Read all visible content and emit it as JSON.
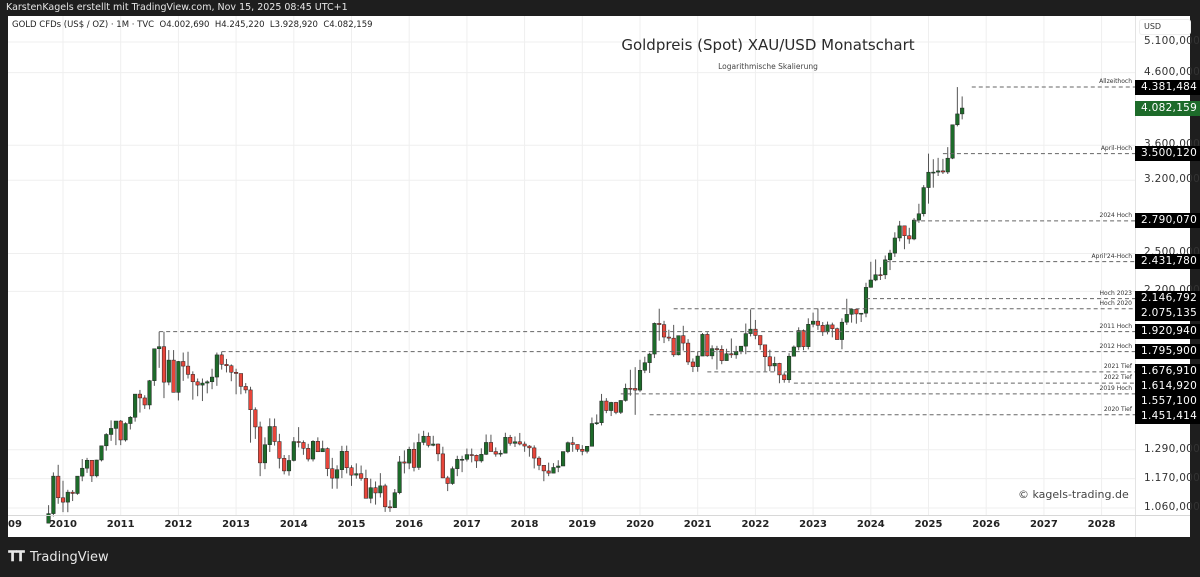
{
  "header": {
    "attribution": "KarstenKagels erstellt mit TradingView.com, Nov 15, 2025 08:45 UTC+1"
  },
  "legend": {
    "symbol": "GOLD CFDs (US$ / OZ) · 1M · TVC",
    "open": "O4.002,690",
    "high": "H4.245,220",
    "low": "L3.928,920",
    "close": "C4.082,159"
  },
  "chart_title": "Goldpreis (Spot) XAU/USD Monatschart",
  "chart_subtitle": "Logarithmische Skalierung",
  "watermark": "© kagels-trading.de",
  "footer": {
    "brand": "TradingView",
    "logo_icon": "tradingview-logo-icon"
  },
  "colors": {
    "up": "#1d6b2a",
    "down": "#e8463b",
    "wick": "#555555",
    "grid": "#efefef",
    "level_bg": "#000000",
    "current_bg": "#1d6b2a"
  },
  "chart_data": {
    "type": "candlestick",
    "title": "Goldpreis (Spot) XAU/USD Monatschart",
    "subtitle": "Logarithmische Skalierung",
    "xlabel": "",
    "ylabel": "USD",
    "y_scale": "log",
    "ylim": [
      1030,
      5400
    ],
    "grid": true,
    "currency_label": "USD",
    "x_ticks": [
      "09",
      "2010",
      "2011",
      "2012",
      "2013",
      "2014",
      "2015",
      "2016",
      "2017",
      "2018",
      "2019",
      "2020",
      "2021",
      "2022",
      "2023",
      "2024",
      "2025",
      "2026",
      "2027",
      "2028"
    ],
    "y_ticks": [
      "5.100,000",
      "4.600,000",
      "3.600,000",
      "3.200,000",
      "2.500,000",
      "2.200,000",
      "1.290,000",
      "1.170,000",
      "1.060,000"
    ],
    "y_tick_values": [
      5100,
      4600,
      3600,
      3200,
      2500,
      2200,
      1290,
      1170,
      1060
    ],
    "current_price": {
      "label": "4.082,159",
      "value": 4082.159
    },
    "horizontal_levels": [
      {
        "name": "Allzeithoch",
        "label": "4.381,484",
        "value": 4381.484,
        "start": "2025-10"
      },
      {
        "name": "April-Hoch",
        "label": "3.500,120",
        "value": 3500.12,
        "start": "2025-04"
      },
      {
        "name": "2024 Hoch",
        "label": "2.790,070",
        "value": 2790.07,
        "start": "2024-10"
      },
      {
        "name": "April'24-Hoch",
        "label": "2.431,780",
        "value": 2431.78,
        "start": "2024-04"
      },
      {
        "name": "Hoch 2023",
        "label": "2.146,792",
        "value": 2146.792,
        "start": "2023-12"
      },
      {
        "name": "Hoch 2020",
        "label": "2.075,135",
        "value": 2075.135,
        "start": "2020-08"
      },
      {
        "name": "2011 Hoch",
        "label": "1.920,940",
        "value": 1920.94,
        "start": "2011-09"
      },
      {
        "name": "2012 Hoch",
        "label": "1.795,900",
        "value": 1795.9,
        "start": "2012-10"
      },
      {
        "name": "2021 Tief",
        "label": "1.676,910",
        "value": 1676.91,
        "start": "2021-03"
      },
      {
        "name": "2022 Tief",
        "label": "1.614,920",
        "value": 1614.92,
        "start": "2022-09"
      },
      {
        "name": "2019 Hoch",
        "label": "1.557,100",
        "value": 1557.1,
        "start": "2019-09"
      },
      {
        "name": "2020 Tief",
        "label": "1.451,414",
        "value": 1451.414,
        "start": "2020-03"
      }
    ],
    "last_candle": {
      "date": "2025-11",
      "open": 4002.69,
      "high": 4245.22,
      "low": 3928.92,
      "close": 4082.159
    },
    "start": "2009-10",
    "ohlc_monthly": [
      [
        1007,
        1070,
        1025,
        1040
      ],
      [
        1040,
        1195,
        1030,
        1180
      ],
      [
        1180,
        1226,
        1075,
        1097
      ],
      [
        1097,
        1162,
        1045,
        1081
      ],
      [
        1081,
        1127,
        1045,
        1118
      ],
      [
        1118,
        1126,
        1085,
        1113
      ],
      [
        1113,
        1167,
        1108,
        1180
      ],
      [
        1180,
        1250,
        1160,
        1212
      ],
      [
        1212,
        1255,
        1193,
        1245
      ],
      [
        1245,
        1215,
        1157,
        1181
      ],
      [
        1181,
        1247,
        1175,
        1246
      ],
      [
        1246,
        1300,
        1240,
        1307
      ],
      [
        1307,
        1364,
        1286,
        1358
      ],
      [
        1358,
        1424,
        1329,
        1386
      ],
      [
        1386,
        1404,
        1310,
        1421
      ],
      [
        1421,
        1426,
        1310,
        1333
      ],
      [
        1333,
        1415,
        1326,
        1409
      ],
      [
        1409,
        1445,
        1381,
        1439
      ],
      [
        1439,
        1555,
        1418,
        1556
      ],
      [
        1556,
        1578,
        1462,
        1536
      ],
      [
        1536,
        1550,
        1480,
        1500
      ],
      [
        1500,
        1632,
        1478,
        1628
      ],
      [
        1628,
        1814,
        1600,
        1813
      ],
      [
        1813,
        1920,
        1700,
        1826
      ],
      [
        1826,
        1920,
        1535,
        1620
      ],
      [
        1620,
        1805,
        1603,
        1745
      ],
      [
        1745,
        1805,
        1670,
        1565
      ],
      [
        1565,
        1740,
        1523,
        1737
      ],
      [
        1737,
        1790,
        1627,
        1710
      ],
      [
        1710,
        1795,
        1640,
        1663
      ],
      [
        1663,
        1680,
        1527,
        1622
      ],
      [
        1622,
        1640,
        1545,
        1604
      ],
      [
        1604,
        1640,
        1520,
        1615
      ],
      [
        1615,
        1630,
        1560,
        1622
      ],
      [
        1622,
        1695,
        1582,
        1648
      ],
      [
        1648,
        1790,
        1600,
        1776
      ],
      [
        1776,
        1795,
        1690,
        1720
      ],
      [
        1720,
        1752,
        1674,
        1712
      ],
      [
        1712,
        1720,
        1625,
        1675
      ],
      [
        1675,
        1695,
        1555,
        1668
      ],
      [
        1668,
        1620,
        1555,
        1597
      ],
      [
        1597,
        1615,
        1560,
        1578
      ],
      [
        1578,
        1595,
        1321,
        1476
      ],
      [
        1476,
        1488,
        1338,
        1393
      ],
      [
        1393,
        1418,
        1180,
        1234
      ],
      [
        1234,
        1345,
        1208,
        1312
      ],
      [
        1312,
        1434,
        1280,
        1395
      ],
      [
        1395,
        1433,
        1308,
        1326
      ],
      [
        1326,
        1361,
        1211,
        1253
      ],
      [
        1253,
        1267,
        1187,
        1201
      ],
      [
        1201,
        1267,
        1182,
        1244
      ],
      [
        1244,
        1346,
        1240,
        1326
      ],
      [
        1326,
        1392,
        1300,
        1322
      ],
      [
        1322,
        1331,
        1268,
        1296
      ],
      [
        1296,
        1316,
        1240,
        1250
      ],
      [
        1250,
        1332,
        1240,
        1327
      ],
      [
        1327,
        1345,
        1280,
        1281
      ],
      [
        1281,
        1330,
        1290,
        1295
      ],
      [
        1295,
        1300,
        1180,
        1210
      ],
      [
        1210,
        1255,
        1131,
        1172
      ],
      [
        1172,
        1224,
        1131,
        1206
      ],
      [
        1206,
        1307,
        1172,
        1283
      ],
      [
        1283,
        1308,
        1191,
        1214
      ],
      [
        1214,
        1224,
        1142,
        1184
      ],
      [
        1184,
        1232,
        1170,
        1190
      ],
      [
        1190,
        1223,
        1162,
        1171
      ],
      [
        1171,
        1206,
        1130,
        1095
      ],
      [
        1095,
        1170,
        1077,
        1135
      ],
      [
        1135,
        1159,
        1072,
        1115
      ],
      [
        1115,
        1192,
        1098,
        1142
      ],
      [
        1142,
        1150,
        1046,
        1064
      ],
      [
        1064,
        1088,
        1046,
        1061
      ],
      [
        1061,
        1130,
        1062,
        1116
      ],
      [
        1116,
        1263,
        1110,
        1238
      ],
      [
        1238,
        1287,
        1191,
        1233
      ],
      [
        1233,
        1303,
        1208,
        1292
      ],
      [
        1292,
        1322,
        1199,
        1215
      ],
      [
        1215,
        1362,
        1205,
        1322
      ],
      [
        1322,
        1375,
        1310,
        1350
      ],
      [
        1350,
        1367,
        1300,
        1309
      ],
      [
        1309,
        1352,
        1305,
        1315
      ],
      [
        1315,
        1317,
        1241,
        1272
      ],
      [
        1272,
        1303,
        1172,
        1173
      ],
      [
        1173,
        1181,
        1122,
        1151
      ],
      [
        1151,
        1219,
        1146,
        1210
      ],
      [
        1210,
        1264,
        1180,
        1249
      ],
      [
        1249,
        1264,
        1196,
        1249
      ],
      [
        1249,
        1295,
        1240,
        1269
      ],
      [
        1269,
        1295,
        1236,
        1266
      ],
      [
        1266,
        1269,
        1213,
        1242
      ],
      [
        1242,
        1296,
        1235,
        1270
      ],
      [
        1270,
        1358,
        1267,
        1322
      ],
      [
        1322,
        1357,
        1310,
        1282
      ],
      [
        1282,
        1300,
        1260,
        1271
      ],
      [
        1271,
        1288,
        1260,
        1275
      ],
      [
        1275,
        1366,
        1300,
        1345
      ],
      [
        1345,
        1356,
        1308,
        1318
      ],
      [
        1318,
        1349,
        1302,
        1325
      ],
      [
        1325,
        1365,
        1309,
        1315
      ],
      [
        1315,
        1326,
        1281,
        1306
      ],
      [
        1306,
        1310,
        1260,
        1298
      ],
      [
        1298,
        1309,
        1211,
        1254
      ],
      [
        1254,
        1262,
        1204,
        1224
      ],
      [
        1224,
        1214,
        1160,
        1201
      ],
      [
        1201,
        1235,
        1180,
        1192
      ],
      [
        1192,
        1233,
        1196,
        1215
      ],
      [
        1215,
        1245,
        1196,
        1221
      ],
      [
        1221,
        1282,
        1221,
        1282
      ],
      [
        1282,
        1326,
        1275,
        1321
      ],
      [
        1321,
        1347,
        1281,
        1313
      ],
      [
        1313,
        1310,
        1281,
        1292
      ],
      [
        1292,
        1310,
        1266,
        1283
      ],
      [
        1283,
        1305,
        1274,
        1305
      ],
      [
        1305,
        1438,
        1318,
        1409
      ],
      [
        1409,
        1453,
        1402,
        1413
      ],
      [
        1413,
        1557,
        1400,
        1520
      ],
      [
        1520,
        1535,
        1459,
        1472
      ],
      [
        1472,
        1516,
        1445,
        1513
      ],
      [
        1513,
        1516,
        1454,
        1463
      ],
      [
        1463,
        1524,
        1455,
        1523
      ],
      [
        1523,
        1612,
        1517,
        1587
      ],
      [
        1587,
        1689,
        1548,
        1586
      ],
      [
        1586,
        1704,
        1451,
        1577
      ],
      [
        1577,
        1747,
        1568,
        1686
      ],
      [
        1686,
        1765,
        1670,
        1730
      ],
      [
        1730,
        1789,
        1671,
        1781
      ],
      [
        1781,
        1981,
        1757,
        1975
      ],
      [
        1975,
        2075,
        1863,
        1967
      ],
      [
        1967,
        1992,
        1848,
        1886
      ],
      [
        1886,
        1933,
        1860,
        1879
      ],
      [
        1879,
        1965,
        1764,
        1776
      ],
      [
        1776,
        1875,
        1773,
        1895
      ],
      [
        1895,
        1959,
        1802,
        1848
      ],
      [
        1848,
        1873,
        1717,
        1734
      ],
      [
        1734,
        1755,
        1676,
        1707
      ],
      [
        1707,
        1797,
        1678,
        1769
      ],
      [
        1769,
        1912,
        1770,
        1903
      ],
      [
        1903,
        1916,
        1765,
        1770
      ],
      [
        1770,
        1834,
        1750,
        1814
      ],
      [
        1814,
        1831,
        1690,
        1810
      ],
      [
        1810,
        1834,
        1721,
        1742
      ],
      [
        1742,
        1813,
        1745,
        1783
      ],
      [
        1783,
        1877,
        1758,
        1776
      ],
      [
        1776,
        1831,
        1753,
        1797
      ],
      [
        1797,
        1829,
        1780,
        1829
      ],
      [
        1829,
        1974,
        1780,
        1908
      ],
      [
        1908,
        2070,
        1890,
        1937
      ],
      [
        1937,
        1998,
        1872,
        1896
      ],
      [
        1896,
        1879,
        1807,
        1837
      ],
      [
        1837,
        1814,
        1680,
        1765
      ],
      [
        1765,
        1807,
        1681,
        1711
      ],
      [
        1711,
        1765,
        1680,
        1726
      ],
      [
        1726,
        1729,
        1614,
        1660
      ],
      [
        1660,
        1673,
        1617,
        1633
      ],
      [
        1633,
        1786,
        1616,
        1768
      ],
      [
        1768,
        1833,
        1768,
        1824
      ],
      [
        1824,
        1949,
        1804,
        1928
      ],
      [
        1928,
        1935,
        1804,
        1826
      ],
      [
        1826,
        2009,
        1809,
        1969
      ],
      [
        1969,
        2048,
        1949,
        1990
      ],
      [
        1990,
        2077,
        1932,
        1962
      ],
      [
        1962,
        1984,
        1893,
        1919
      ],
      [
        1919,
        1987,
        1903,
        1965
      ],
      [
        1965,
        1980,
        1884,
        1940
      ],
      [
        1940,
        1947,
        1871,
        1870
      ],
      [
        1870,
        2009,
        1810,
        1983
      ],
      [
        1983,
        2146,
        1965,
        2036
      ],
      [
        2036,
        2078,
        1980,
        2071
      ],
      [
        2071,
        2065,
        1973,
        2039
      ],
      [
        2039,
        2041,
        1984,
        2044
      ],
      [
        2044,
        2265,
        2016,
        2230
      ],
      [
        2230,
        2431,
        2228,
        2286
      ],
      [
        2286,
        2450,
        2277,
        2327
      ],
      [
        2327,
        2387,
        2286,
        2326
      ],
      [
        2326,
        2483,
        2293,
        2447
      ],
      [
        2447,
        2531,
        2364,
        2503
      ],
      [
        2503,
        2685,
        2471,
        2634
      ],
      [
        2634,
        2790,
        2604,
        2744
      ],
      [
        2744,
        2721,
        2536,
        2654
      ],
      [
        2654,
        2726,
        2583,
        2625
      ],
      [
        2625,
        2817,
        2614,
        2798
      ],
      [
        2798,
        2956,
        2772,
        2858
      ],
      [
        2858,
        3148,
        2832,
        3122
      ],
      [
        3122,
        3500,
        2957,
        3288
      ],
      [
        3288,
        3435,
        3121,
        3289
      ],
      [
        3289,
        3451,
        3246,
        3303
      ],
      [
        3303,
        3439,
        3268,
        3290
      ],
      [
        3290,
        3578,
        3268,
        3447
      ],
      [
        3447,
        3791,
        3436,
        3858
      ],
      [
        3858,
        4381,
        3837,
        4002
      ],
      [
        4002,
        4245,
        3929,
        4082
      ]
    ]
  }
}
